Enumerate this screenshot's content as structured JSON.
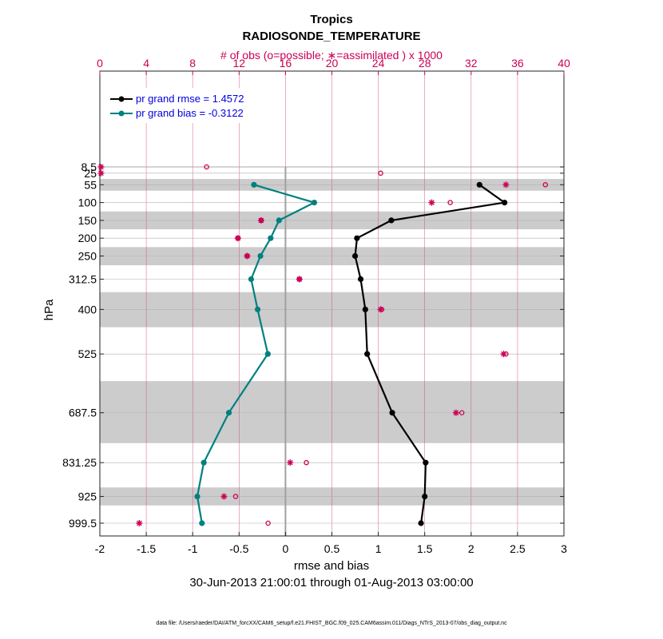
{
  "chart_data": {
    "type": "line",
    "title": "Tropics",
    "subtitle": "RADIOSONDE_TEMPERATURE",
    "top_axis_label": "# of obs (o=possible; ∗=assimilated ) x 1000",
    "xlabel": "rmse and bias",
    "ylabel": "hPa",
    "date_range": "30-Jun-2013 21:00:01 through 01-Aug-2013 03:00:00",
    "footer": "data file: /Users/raeder/DAI/ATM_forcXX/CAM6_setup/f.e21.FHIST_BGC.f09_025.CAM6assim.011/Diags_NTrS_2013-07/obs_diag_output.nc",
    "xlim": [
      -2,
      3
    ],
    "xticks": [
      -2,
      -1.5,
      -1,
      -0.5,
      0,
      0.5,
      1,
      1.5,
      2,
      2.5,
      3
    ],
    "xtick_labels": [
      "-2",
      "-1.5",
      "-1",
      "-0.5",
      "0",
      "0.5",
      "1",
      "1.5",
      "2",
      "2.5",
      "3"
    ],
    "top_xlim": [
      0,
      40
    ],
    "top_xticks": [
      0,
      4,
      8,
      12,
      16,
      20,
      24,
      28,
      32,
      36,
      40
    ],
    "top_xtick_labels": [
      "0",
      "4",
      "8",
      "12",
      "16",
      "20",
      "24",
      "28",
      "32",
      "36",
      "40"
    ],
    "levels": [
      8.5,
      25,
      55,
      100,
      150,
      200,
      250,
      312.5,
      400,
      525,
      687.5,
      831.25,
      925,
      999.5
    ],
    "level_labels": [
      "8.5",
      "25",
      "55",
      "100",
      "150",
      "200",
      "250",
      "312.5",
      "400",
      "525",
      "687.5",
      "831.25",
      "925",
      "999.5"
    ],
    "level_rank": [
      0,
      0.35,
      1,
      2,
      3,
      4,
      5,
      6.3,
      8,
      10.5,
      13.8,
      16.6,
      18.5,
      20
    ],
    "shaded_bands": [
      [
        7,
        10
      ],
      [
        40,
        70
      ],
      [
        125,
        175
      ],
      [
        225,
        275
      ],
      [
        350,
        450
      ],
      [
        600,
        775
      ],
      [
        900,
        950
      ]
    ],
    "series": [
      {
        "name": "rmse",
        "legend": "pr grand rmse = 1.4572",
        "color": "#000000",
        "levels": [
          55,
          100,
          150,
          200,
          250,
          312.5,
          400,
          525,
          687.5,
          831.25,
          925,
          999.5
        ],
        "values": [
          2.09,
          2.36,
          1.14,
          0.77,
          0.75,
          0.81,
          0.86,
          0.88,
          1.15,
          1.51,
          1.5,
          1.46
        ]
      },
      {
        "name": "bias",
        "legend": "pr grand bias = -0.3122",
        "color": "#008080",
        "levels": [
          55,
          100,
          150,
          200,
          250,
          312.5,
          400,
          525,
          687.5,
          831.25,
          925,
          999.5
        ],
        "values": [
          -0.34,
          0.31,
          -0.07,
          -0.16,
          -0.27,
          -0.37,
          -0.3,
          -0.19,
          -0.61,
          -0.88,
          -0.95,
          -0.9
        ]
      }
    ],
    "obs_possible": {
      "marker": "o",
      "levels": [
        8.5,
        25,
        55,
        100,
        150,
        200,
        250,
        312.5,
        400,
        525,
        687.5,
        831.25,
        925,
        999.5
      ],
      "values": [
        9.2,
        24.2,
        38.4,
        30.2,
        13.9,
        11.9,
        12.7,
        17.2,
        24.3,
        35.0,
        31.2,
        17.8,
        11.7,
        14.5
      ]
    },
    "obs_assimilated": {
      "marker": "*",
      "levels": [
        8.5,
        25,
        55,
        100,
        150,
        200,
        250,
        312.5,
        400,
        525,
        687.5,
        831.25,
        925,
        999.5
      ],
      "values": [
        0.1,
        0.1,
        35.0,
        28.6,
        13.9,
        11.9,
        12.7,
        17.2,
        24.2,
        34.8,
        30.7,
        16.4,
        10.7,
        3.4
      ]
    },
    "grid": true,
    "legend_position": "top-left"
  }
}
